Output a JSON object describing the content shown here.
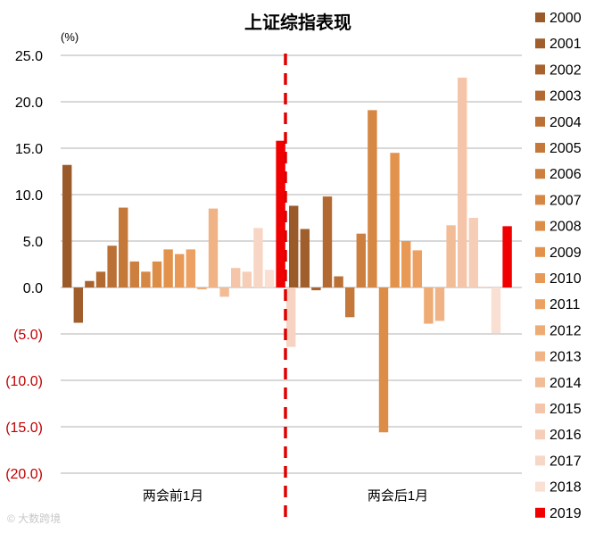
{
  "chart_data": {
    "type": "bar",
    "title": "上证综指表现",
    "unit_label": "(%)",
    "categories": [
      "两会前1月",
      "两会后1月"
    ],
    "ylim": [
      -20,
      25
    ],
    "yticks": [
      {
        "value": 25,
        "label": "25.0"
      },
      {
        "value": 20,
        "label": "20.0"
      },
      {
        "value": 15,
        "label": "15.0"
      },
      {
        "value": 10,
        "label": "10.0"
      },
      {
        "value": 5,
        "label": "5.0"
      },
      {
        "value": 0,
        "label": "0.0"
      },
      {
        "value": -5,
        "label": "(5.0)"
      },
      {
        "value": -10,
        "label": "(10.0)"
      },
      {
        "value": -15,
        "label": "(15.0)"
      },
      {
        "value": -20,
        "label": "(20.0)"
      }
    ],
    "positive_tick_color": "#000000",
    "negative_tick_color": "#c00000",
    "grid": true,
    "legend_position": "right",
    "divider": "red dashed line between groups",
    "series": [
      {
        "name": "2000",
        "color": "#9b5a2a",
        "values": [
          13.2,
          8.8
        ]
      },
      {
        "name": "2001",
        "color": "#a05e2c",
        "values": [
          -3.8,
          6.3
        ]
      },
      {
        "name": "2002",
        "color": "#a9622e",
        "values": [
          0.7,
          -0.3
        ]
      },
      {
        "name": "2003",
        "color": "#b26a32",
        "values": [
          1.7,
          9.8
        ]
      },
      {
        "name": "2004",
        "color": "#bb7136",
        "values": [
          4.5,
          1.2
        ]
      },
      {
        "name": "2005",
        "color": "#c4783a",
        "values": [
          8.6,
          -3.2
        ]
      },
      {
        "name": "2006",
        "color": "#cc7f3e",
        "values": [
          2.8,
          5.8
        ]
      },
      {
        "name": "2007",
        "color": "#d58743",
        "values": [
          1.7,
          19.1
        ]
      },
      {
        "name": "2008",
        "color": "#dc8d48",
        "values": [
          2.8,
          -15.6
        ]
      },
      {
        "name": "2009",
        "color": "#e3924c",
        "values": [
          4.1,
          14.5
        ]
      },
      {
        "name": "2010",
        "color": "#e89955",
        "values": [
          3.6,
          5.0
        ]
      },
      {
        "name": "2011",
        "color": "#eca163",
        "values": [
          4.1,
          4.0
        ]
      },
      {
        "name": "2012",
        "color": "#efab74",
        "values": [
          -0.2,
          -3.9
        ]
      },
      {
        "name": "2013",
        "color": "#f0b386",
        "values": [
          8.5,
          -3.6
        ]
      },
      {
        "name": "2014",
        "color": "#f2bc97",
        "values": [
          -1.0,
          6.7
        ]
      },
      {
        "name": "2015",
        "color": "#f4c5a8",
        "values": [
          2.1,
          22.6
        ]
      },
      {
        "name": "2016",
        "color": "#f6ceb7",
        "values": [
          1.7,
          7.5
        ]
      },
      {
        "name": "2017",
        "color": "#f8d6c5",
        "values": [
          6.4,
          0.1
        ]
      },
      {
        "name": "2018",
        "color": "#fadfd3",
        "values": [
          1.9,
          -4.9
        ]
      },
      {
        "name": "2019",
        "color": "#f00000",
        "values": [
          15.8,
          6.6
        ]
      }
    ],
    "extra_bar": {
      "group": 0,
      "value": -6.4,
      "color": "#f7d3c3"
    }
  }
}
